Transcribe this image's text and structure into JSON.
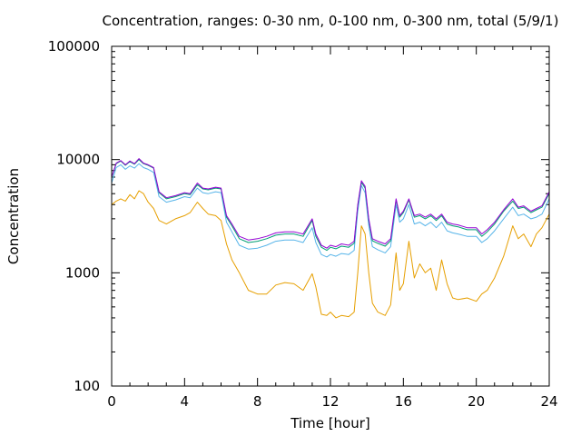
{
  "chart_data": {
    "type": "line",
    "title": "Concentration, ranges: 0-30 nm, 0-100 nm, 0-300 nm, total (5/9/1)",
    "xlabel": "Time [hour]",
    "ylabel": "Concentration",
    "xlim": [
      0,
      24
    ],
    "ylim": [
      100,
      100000
    ],
    "yscale": "log",
    "grid": false,
    "legend": "none",
    "xticks": [
      0,
      4,
      8,
      12,
      16,
      20,
      24
    ],
    "xtick_labels": [
      "0",
      "4",
      "8",
      "12",
      "16",
      "20",
      "24"
    ],
    "yticks": [
      100,
      1000,
      10000,
      100000
    ],
    "ytick_labels": [
      "100",
      "1000",
      "10000",
      "100000"
    ],
    "x": [
      0,
      0.25,
      0.5,
      0.75,
      1,
      1.25,
      1.5,
      1.75,
      2,
      2.3,
      2.6,
      3,
      3.5,
      4,
      4.3,
      4.7,
      5,
      5.3,
      5.7,
      6,
      6.3,
      6.6,
      7,
      7.5,
      8,
      8.5,
      9,
      9.5,
      10,
      10.5,
      11,
      11.2,
      11.5,
      11.8,
      12,
      12.3,
      12.6,
      13,
      13.3,
      13.5,
      13.7,
      13.9,
      14.1,
      14.3,
      14.6,
      15,
      15.3,
      15.6,
      15.8,
      16,
      16.3,
      16.6,
      16.9,
      17.2,
      17.5,
      17.8,
      18.1,
      18.4,
      18.7,
      19,
      19.5,
      20,
      20.3,
      20.6,
      21,
      21.5,
      22,
      22.3,
      22.6,
      23,
      23.3,
      23.6,
      24
    ],
    "series": [
      {
        "color": "#9400d3",
        "values": [
          7000,
          9300,
          9800,
          9000,
          9700,
          9200,
          10200,
          9300,
          9000,
          8500,
          5200,
          4600,
          4800,
          5100,
          5000,
          6200,
          5600,
          5500,
          5700,
          5600,
          3200,
          2700,
          2100,
          1950,
          2000,
          2100,
          2250,
          2300,
          2300,
          2200,
          3000,
          2200,
          1750,
          1650,
          1750,
          1700,
          1800,
          1750,
          1900,
          4000,
          6500,
          5800,
          3000,
          2000,
          1900,
          1800,
          2000,
          4500,
          3200,
          3500,
          4500,
          3200,
          3300,
          3100,
          3300,
          3000,
          3300,
          2800,
          2700,
          2650,
          2500,
          2500,
          2200,
          2400,
          2800,
          3600,
          4500,
          3800,
          3900,
          3500,
          3700,
          3900,
          5200
        ]
      },
      {
        "color": "#009e73",
        "values": [
          6900,
          9200,
          9700,
          8900,
          9600,
          9100,
          10000,
          9200,
          8900,
          8400,
          5100,
          4500,
          4700,
          5000,
          4900,
          6000,
          5500,
          5400,
          5600,
          5500,
          3100,
          2600,
          2000,
          1850,
          1900,
          2000,
          2150,
          2200,
          2200,
          2100,
          2900,
          2100,
          1680,
          1580,
          1680,
          1630,
          1720,
          1680,
          1820,
          3900,
          6300,
          5600,
          2900,
          1920,
          1820,
          1720,
          1920,
          4400,
          3100,
          3400,
          4400,
          3100,
          3200,
          3000,
          3200,
          2900,
          3200,
          2700,
          2600,
          2550,
          2400,
          2400,
          2100,
          2300,
          2700,
          3500,
          4300,
          3700,
          3800,
          3400,
          3600,
          3800,
          5000
        ]
      },
      {
        "color": "#56b4e9",
        "values": [
          6200,
          8500,
          9000,
          8200,
          8800,
          8400,
          9200,
          8500,
          8200,
          7700,
          4700,
          4200,
          4400,
          4700,
          4600,
          5600,
          5100,
          5000,
          5200,
          5100,
          2800,
          2300,
          1750,
          1620,
          1650,
          1750,
          1900,
          1950,
          1950,
          1850,
          2500,
          1850,
          1450,
          1380,
          1450,
          1400,
          1480,
          1450,
          1580,
          3500,
          5900,
          5100,
          2600,
          1700,
          1600,
          1500,
          1700,
          4000,
          2800,
          3000,
          4000,
          2700,
          2800,
          2600,
          2800,
          2500,
          2800,
          2350,
          2250,
          2200,
          2100,
          2100,
          1850,
          2000,
          2350,
          3000,
          3800,
          3200,
          3300,
          3000,
          3100,
          3300,
          4500
        ]
      },
      {
        "color": "#e69f00",
        "values": [
          4000,
          4300,
          4500,
          4300,
          4900,
          4500,
          5300,
          5000,
          4200,
          3700,
          2900,
          2700,
          3000,
          3200,
          3400,
          4200,
          3700,
          3300,
          3200,
          2900,
          1800,
          1300,
          1000,
          700,
          650,
          650,
          780,
          820,
          800,
          700,
          980,
          750,
          430,
          420,
          450,
          400,
          420,
          410,
          450,
          1000,
          2600,
          2200,
          1000,
          540,
          450,
          420,
          520,
          1500,
          700,
          800,
          1900,
          900,
          1200,
          1000,
          1100,
          700,
          1300,
          800,
          600,
          580,
          600,
          560,
          650,
          700,
          900,
          1400,
          2600,
          2000,
          2200,
          1700,
          2200,
          2500,
          3300
        ]
      }
    ]
  }
}
